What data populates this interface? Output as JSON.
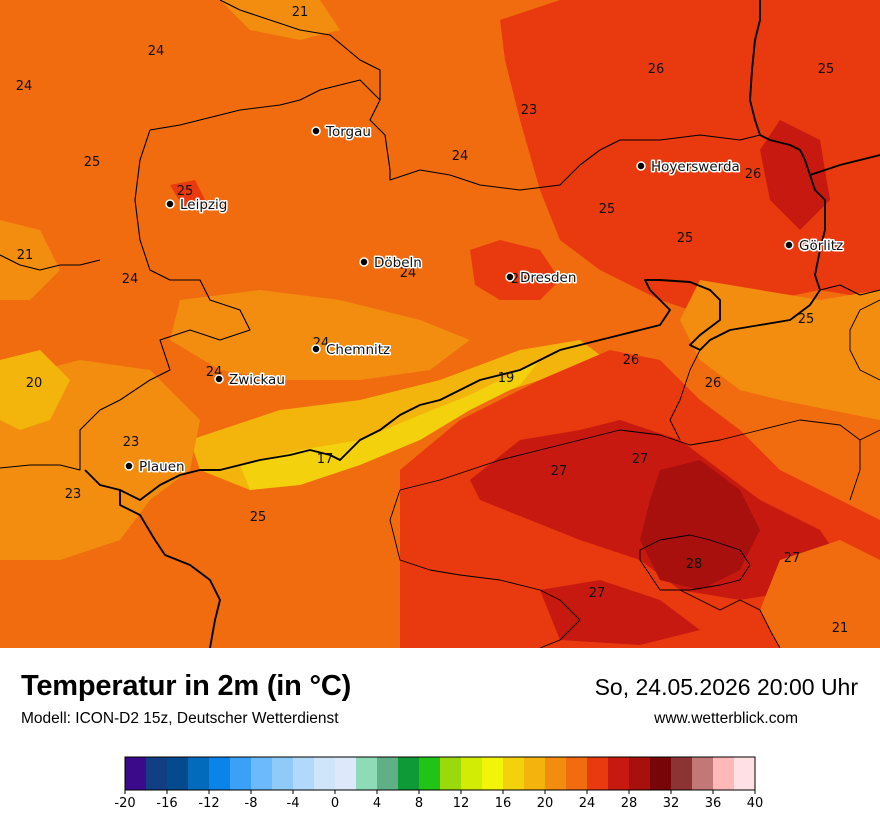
{
  "title": "Temperatur in 2m (in °C)",
  "model": "Modell: ICON-D2 15z, Deutscher Wetterdienst",
  "datetime": "So, 24.05.2026 20:00 Uhr",
  "website": "www.wetterblick.com",
  "cities": [
    {
      "name": "Torgau"
    },
    {
      "name": "Hoyerswerda"
    },
    {
      "name": "Leipzig"
    },
    {
      "name": "Görlitz"
    },
    {
      "name": "Döbeln"
    },
    {
      "name": "Dresden"
    },
    {
      "name": "Chemnitz"
    },
    {
      "name": "Zwickau"
    },
    {
      "name": "Plauen"
    }
  ],
  "temperature_labels": [
    "21",
    "24",
    "24",
    "26",
    "25",
    "23",
    "25",
    "24",
    "25",
    "26",
    "21",
    "25",
    "24",
    "24",
    "25",
    "26",
    "24",
    "25",
    "24",
    "20",
    "19",
    "26",
    "26",
    "23",
    "17",
    "27",
    "27",
    "23",
    "25",
    "28",
    "27",
    "27",
    "21"
  ],
  "legend": {
    "unit": "°C",
    "ticks": [
      "-20",
      "-16",
      "-12",
      "-8",
      "-4",
      "0",
      "4",
      "8",
      "12",
      "16",
      "20",
      "24",
      "28",
      "32",
      "36",
      "40"
    ],
    "colors": [
      "#3a0a8a",
      "#123e84",
      "#034a8e",
      "#036bbb",
      "#0b84ea",
      "#3aa0f8",
      "#6cbafc",
      "#90caf9",
      "#b2d9fb",
      "#cfe5fa",
      "#dde9fb",
      "#8edbb7",
      "#5fb086",
      "#0e9a37",
      "#22c317",
      "#9ad90c",
      "#d2ec06",
      "#f2f40a",
      "#f3d10c",
      "#f3b40c",
      "#f28d10",
      "#f06c0f",
      "#e9390e",
      "#c7190f",
      "#a7100d",
      "#780508",
      "#8c3434",
      "#c27876",
      "#ffb8b8",
      "#ffe0e4"
    ]
  }
}
